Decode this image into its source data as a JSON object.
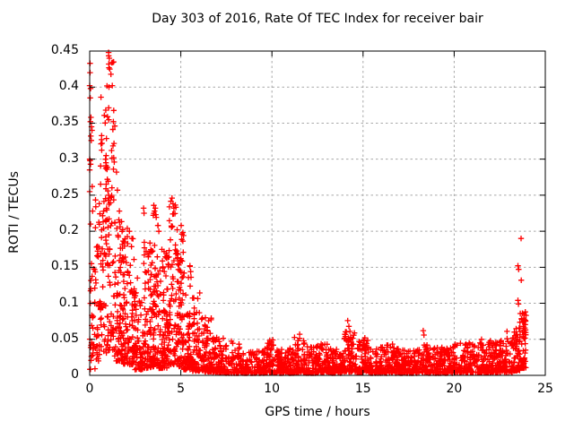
{
  "chart_data": {
    "type": "scatter",
    "title": "Day 303 of 2016, Rate Of TEC Index for receiver bair",
    "xlabel": "GPS time / hours",
    "ylabel": "ROTI / TECUs",
    "xlim": [
      0,
      25
    ],
    "ylim": [
      0,
      0.45
    ],
    "xticks": [
      0,
      5,
      10,
      15,
      20,
      25
    ],
    "yticks": [
      0,
      0.05,
      0.1,
      0.15,
      0.2,
      0.25,
      0.3,
      0.35,
      0.4,
      0.45
    ],
    "ytick_labels": [
      "0",
      "0.05",
      "0.1",
      "0.15",
      "0.2",
      "0.25",
      "0.3",
      "0.35",
      "0.4",
      "0.45"
    ],
    "grid": "dashed",
    "legend": "none",
    "marker": "plus",
    "marker_size_px": 7,
    "colors": {
      "marker": "#ff0000",
      "grid": "#a8a8a8",
      "border": "#000000",
      "text": "#000000",
      "background": "#ffffff"
    },
    "series_name": "ROTI",
    "seed": 303,
    "density_bands_t0_t1_n_ymin_ymax_skew": [
      [
        0.0,
        0.3,
        30,
        0.008,
        0.15,
        2.0
      ],
      [
        0.3,
        0.6,
        40,
        0.02,
        0.26,
        1.8
      ],
      [
        0.6,
        0.92,
        50,
        0.03,
        0.37,
        1.6
      ],
      [
        0.92,
        1.35,
        75,
        0.035,
        0.445,
        1.5
      ],
      [
        1.35,
        1.85,
        85,
        0.02,
        0.22,
        1.8
      ],
      [
        1.85,
        2.45,
        95,
        0.015,
        0.21,
        2.1
      ],
      [
        2.45,
        2.95,
        70,
        0.008,
        0.115,
        2.6
      ],
      [
        2.95,
        3.45,
        90,
        0.01,
        0.195,
        2.1
      ],
      [
        3.45,
        3.8,
        65,
        0.012,
        0.23,
        1.9
      ],
      [
        3.8,
        4.3,
        90,
        0.01,
        0.175,
        2.2
      ],
      [
        4.3,
        4.78,
        85,
        0.015,
        0.243,
        1.8
      ],
      [
        4.78,
        5.15,
        80,
        0.012,
        0.205,
        1.9
      ],
      [
        5.15,
        5.62,
        70,
        0.008,
        0.155,
        2.4
      ],
      [
        5.62,
        6.1,
        70,
        0.006,
        0.115,
        2.6
      ],
      [
        6.1,
        6.7,
        75,
        0.005,
        0.08,
        2.5
      ],
      [
        6.7,
        7.4,
        85,
        0.004,
        0.054,
        2.3
      ],
      [
        7.4,
        8.3,
        95,
        0.003,
        0.048,
        2.1
      ],
      [
        8.3,
        9.6,
        135,
        0.003,
        0.034,
        2.0
      ],
      [
        9.6,
        10.1,
        60,
        0.004,
        0.05,
        2.1
      ],
      [
        10.1,
        11.2,
        115,
        0.003,
        0.038,
        2.0
      ],
      [
        11.2,
        11.8,
        70,
        0.004,
        0.054,
        2.1
      ],
      [
        11.8,
        12.45,
        70,
        0.003,
        0.04,
        2.0
      ],
      [
        12.45,
        13.1,
        72,
        0.004,
        0.047,
        2.0
      ],
      [
        13.1,
        13.9,
        85,
        0.003,
        0.038,
        2.0
      ],
      [
        13.9,
        14.6,
        78,
        0.005,
        0.065,
        1.9
      ],
      [
        14.6,
        15.4,
        85,
        0.004,
        0.05,
        2.0
      ],
      [
        15.4,
        16.3,
        92,
        0.003,
        0.04,
        2.0
      ],
      [
        16.3,
        16.72,
        48,
        0.004,
        0.046,
        2.0
      ],
      [
        16.72,
        18.2,
        150,
        0.003,
        0.037,
        2.0
      ],
      [
        18.2,
        18.6,
        45,
        0.004,
        0.044,
        2.0
      ],
      [
        18.6,
        20.0,
        142,
        0.003,
        0.04,
        2.0
      ],
      [
        20.0,
        21.2,
        122,
        0.004,
        0.045,
        2.0
      ],
      [
        21.2,
        22.3,
        112,
        0.004,
        0.048,
        2.0
      ],
      [
        22.3,
        23.2,
        96,
        0.004,
        0.052,
        2.0
      ],
      [
        23.2,
        23.6,
        52,
        0.006,
        0.07,
        1.8
      ],
      [
        23.6,
        23.95,
        58,
        0.01,
        0.09,
        1.5
      ]
    ],
    "highlight_points_t_v": [
      [
        0.0,
        0.3
      ],
      [
        0.0,
        0.285
      ],
      [
        0.0,
        0.255
      ],
      [
        0.0,
        0.402
      ],
      [
        0.02,
        0.42
      ],
      [
        0.02,
        0.433
      ],
      [
        0.05,
        0.398
      ],
      [
        0.03,
        0.385
      ],
      [
        0.07,
        0.358
      ],
      [
        0.04,
        0.352
      ],
      [
        0.1,
        0.345
      ],
      [
        0.13,
        0.34
      ],
      [
        0.06,
        0.332
      ],
      [
        0.09,
        0.326
      ],
      [
        0.65,
        0.327
      ],
      [
        0.68,
        0.322
      ],
      [
        0.02,
        0.298
      ],
      [
        0.05,
        0.293
      ],
      [
        0.87,
        0.3
      ],
      [
        0.89,
        0.295
      ],
      [
        0.9,
        0.291
      ],
      [
        0.88,
        0.287
      ],
      [
        0.14,
        0.262
      ],
      [
        1.0,
        0.256
      ],
      [
        1.04,
        0.25
      ],
      [
        1.07,
        0.246
      ],
      [
        1.02,
        0.243
      ],
      [
        0.16,
        0.228
      ],
      [
        0.05,
        0.21
      ],
      [
        0.1,
        0.155
      ],
      [
        0.07,
        0.12
      ],
      [
        0.04,
        0.1
      ],
      [
        1.04,
        0.448
      ],
      [
        1.08,
        0.44
      ],
      [
        1.05,
        0.432
      ],
      [
        1.1,
        0.425
      ],
      [
        1.24,
        0.402
      ],
      [
        1.06,
        0.4
      ],
      [
        0.62,
        0.386
      ],
      [
        0.88,
        0.368
      ],
      [
        1.3,
        0.352
      ],
      [
        1.38,
        0.346
      ],
      [
        1.2,
        0.312
      ],
      [
        1.32,
        0.302
      ],
      [
        1.35,
        0.296
      ],
      [
        1.47,
        0.282
      ],
      [
        0.97,
        0.272
      ],
      [
        1.52,
        0.257
      ],
      [
        1.17,
        0.247
      ],
      [
        1.63,
        0.228
      ],
      [
        2.06,
        0.204
      ],
      [
        2.32,
        0.19
      ],
      [
        1.9,
        0.185
      ],
      [
        2.96,
        0.232
      ],
      [
        2.98,
        0.225
      ],
      [
        3.1,
        0.172
      ],
      [
        3.52,
        0.236
      ],
      [
        3.56,
        0.228
      ],
      [
        3.6,
        0.232
      ],
      [
        3.49,
        0.222
      ],
      [
        4.52,
        0.246
      ],
      [
        4.57,
        0.238
      ],
      [
        4.62,
        0.232
      ],
      [
        4.6,
        0.224
      ],
      [
        5.02,
        0.208
      ],
      [
        5.06,
        0.196
      ],
      [
        5.5,
        0.152
      ],
      [
        5.54,
        0.144
      ],
      [
        2.62,
        0.135
      ],
      [
        11.52,
        0.057
      ],
      [
        14.16,
        0.076
      ],
      [
        14.22,
        0.068
      ],
      [
        14.28,
        0.061
      ],
      [
        15.1,
        0.052
      ],
      [
        18.3,
        0.062
      ],
      [
        18.34,
        0.056
      ],
      [
        21.5,
        0.05
      ],
      [
        22.9,
        0.061
      ],
      [
        23.3,
        0.06
      ],
      [
        23.67,
        0.19
      ],
      [
        23.5,
        0.152
      ],
      [
        23.54,
        0.147
      ],
      [
        23.68,
        0.132
      ],
      [
        23.5,
        0.104
      ],
      [
        23.53,
        0.099
      ],
      [
        23.7,
        0.078
      ],
      [
        23.8,
        0.068
      ],
      [
        23.85,
        0.06
      ]
    ]
  }
}
